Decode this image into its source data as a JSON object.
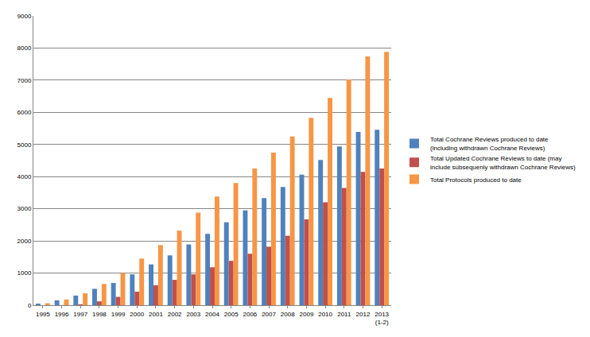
{
  "chart_data": {
    "type": "bar",
    "categories": [
      "1995",
      "1996",
      "1997",
      "1998",
      "1999",
      "2000",
      "2001",
      "2002",
      "2003",
      "2004",
      "2005",
      "2006",
      "2007",
      "2008",
      "2009",
      "2010",
      "2011",
      "2012",
      "2013\n(1-2)"
    ],
    "series": [
      {
        "name": "Total Cochrane Reviews produced to date\n(including withdrawn Cochrane Reviews)",
        "color": "#4f81bd",
        "values": [
          50,
          150,
          300,
          510,
          690,
          960,
          1270,
          1550,
          1890,
          2220,
          2580,
          2950,
          3330,
          3680,
          4060,
          4520,
          4940,
          5390,
          5460
        ]
      },
      {
        "name": "Total Updated Cochrane Reviews to date (may\ninclude subsequenly withdrawn Cochrane Reviews)",
        "color": "#c0504d",
        "values": [
          0,
          5,
          30,
          120,
          260,
          420,
          620,
          790,
          960,
          1180,
          1380,
          1600,
          1820,
          2160,
          2670,
          3200,
          3650,
          4150,
          4250
        ]
      },
      {
        "name": "Total Protocols produced to date",
        "color": "#f79646",
        "values": [
          60,
          180,
          370,
          660,
          1000,
          1450,
          1870,
          2320,
          2880,
          3380,
          3800,
          4250,
          4750,
          5250,
          5830,
          6450,
          7020,
          7740,
          7880
        ]
      }
    ],
    "ylim": [
      0,
      9000
    ],
    "yticks": [
      0,
      1000,
      2000,
      3000,
      4000,
      5000,
      6000,
      7000,
      8000,
      9000
    ],
    "grid": true,
    "legend": "right"
  }
}
